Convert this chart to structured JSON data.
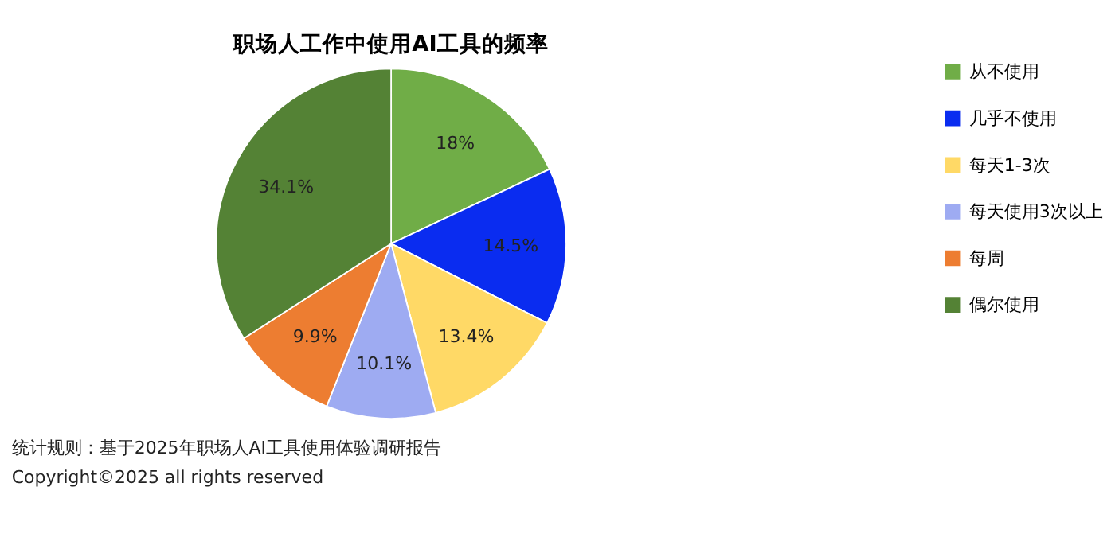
{
  "chart_data": {
    "type": "pie",
    "title": "职场人工作中使用AI工具的频率",
    "categories": [
      "从不使用",
      "几乎不使用",
      "每天1-3次",
      "每天使用3次以上",
      "每周",
      "偶尔使用"
    ],
    "values": [
      18,
      14.5,
      13.4,
      10.1,
      9.9,
      34.1
    ],
    "value_labels": [
      "18%",
      "14.5%",
      "13.4%",
      "10.1%",
      "9.9%",
      "34.1%"
    ],
    "colors": [
      "#70ad47",
      "#0a2cf0",
      "#ffd966",
      "#9eabf2",
      "#ed7d31",
      "#548235"
    ],
    "legend": "right",
    "annotations": [
      "统计规则：基于2025年职场人AI工具使用体验调研报告",
      "Copyright©2025 all rights reserved"
    ]
  }
}
